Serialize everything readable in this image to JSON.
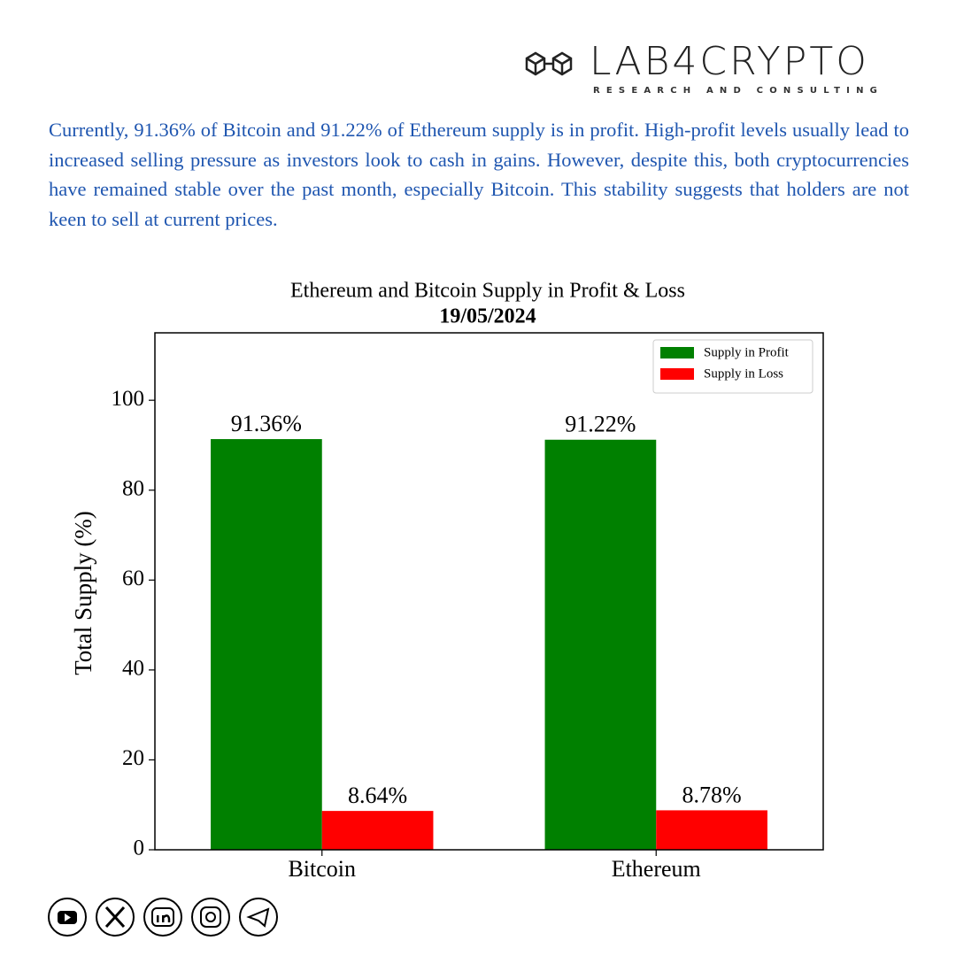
{
  "header": {
    "brand": "LAB4CRYPTO",
    "tagline": "RESEARCH AND CONSULTING"
  },
  "description": "Currently, 91.36% of Bitcoin and 91.22% of Ethereum supply is in profit. High-profit levels usually lead to increased selling pressure as investors look to cash in gains. However, despite this, both cryptocurrencies have remained stable over the past month, especially Bitcoin. This stability suggests that holders are not keen to sell at current prices.",
  "chart_data": {
    "type": "bar",
    "title": "Ethereum and Bitcoin Supply in Profit & Loss",
    "subtitle": "19/05/2024",
    "y_label": "Total Supply (%)",
    "categories": [
      "Bitcoin",
      "Ethereum"
    ],
    "series": [
      {
        "name": "Supply in Profit",
        "color": "#008000",
        "values": [
          91.36,
          91.22
        ],
        "value_labels": [
          "91.36%",
          "91.22%"
        ]
      },
      {
        "name": "Supply in Loss",
        "color": "#ff0000",
        "values": [
          8.64,
          8.78
        ],
        "value_labels": [
          "8.64%",
          "8.78%"
        ]
      }
    ],
    "ylim": [
      0,
      115
    ],
    "yticks": [
      0,
      20,
      40,
      60,
      80,
      100
    ],
    "legend": "upper-right"
  }
}
